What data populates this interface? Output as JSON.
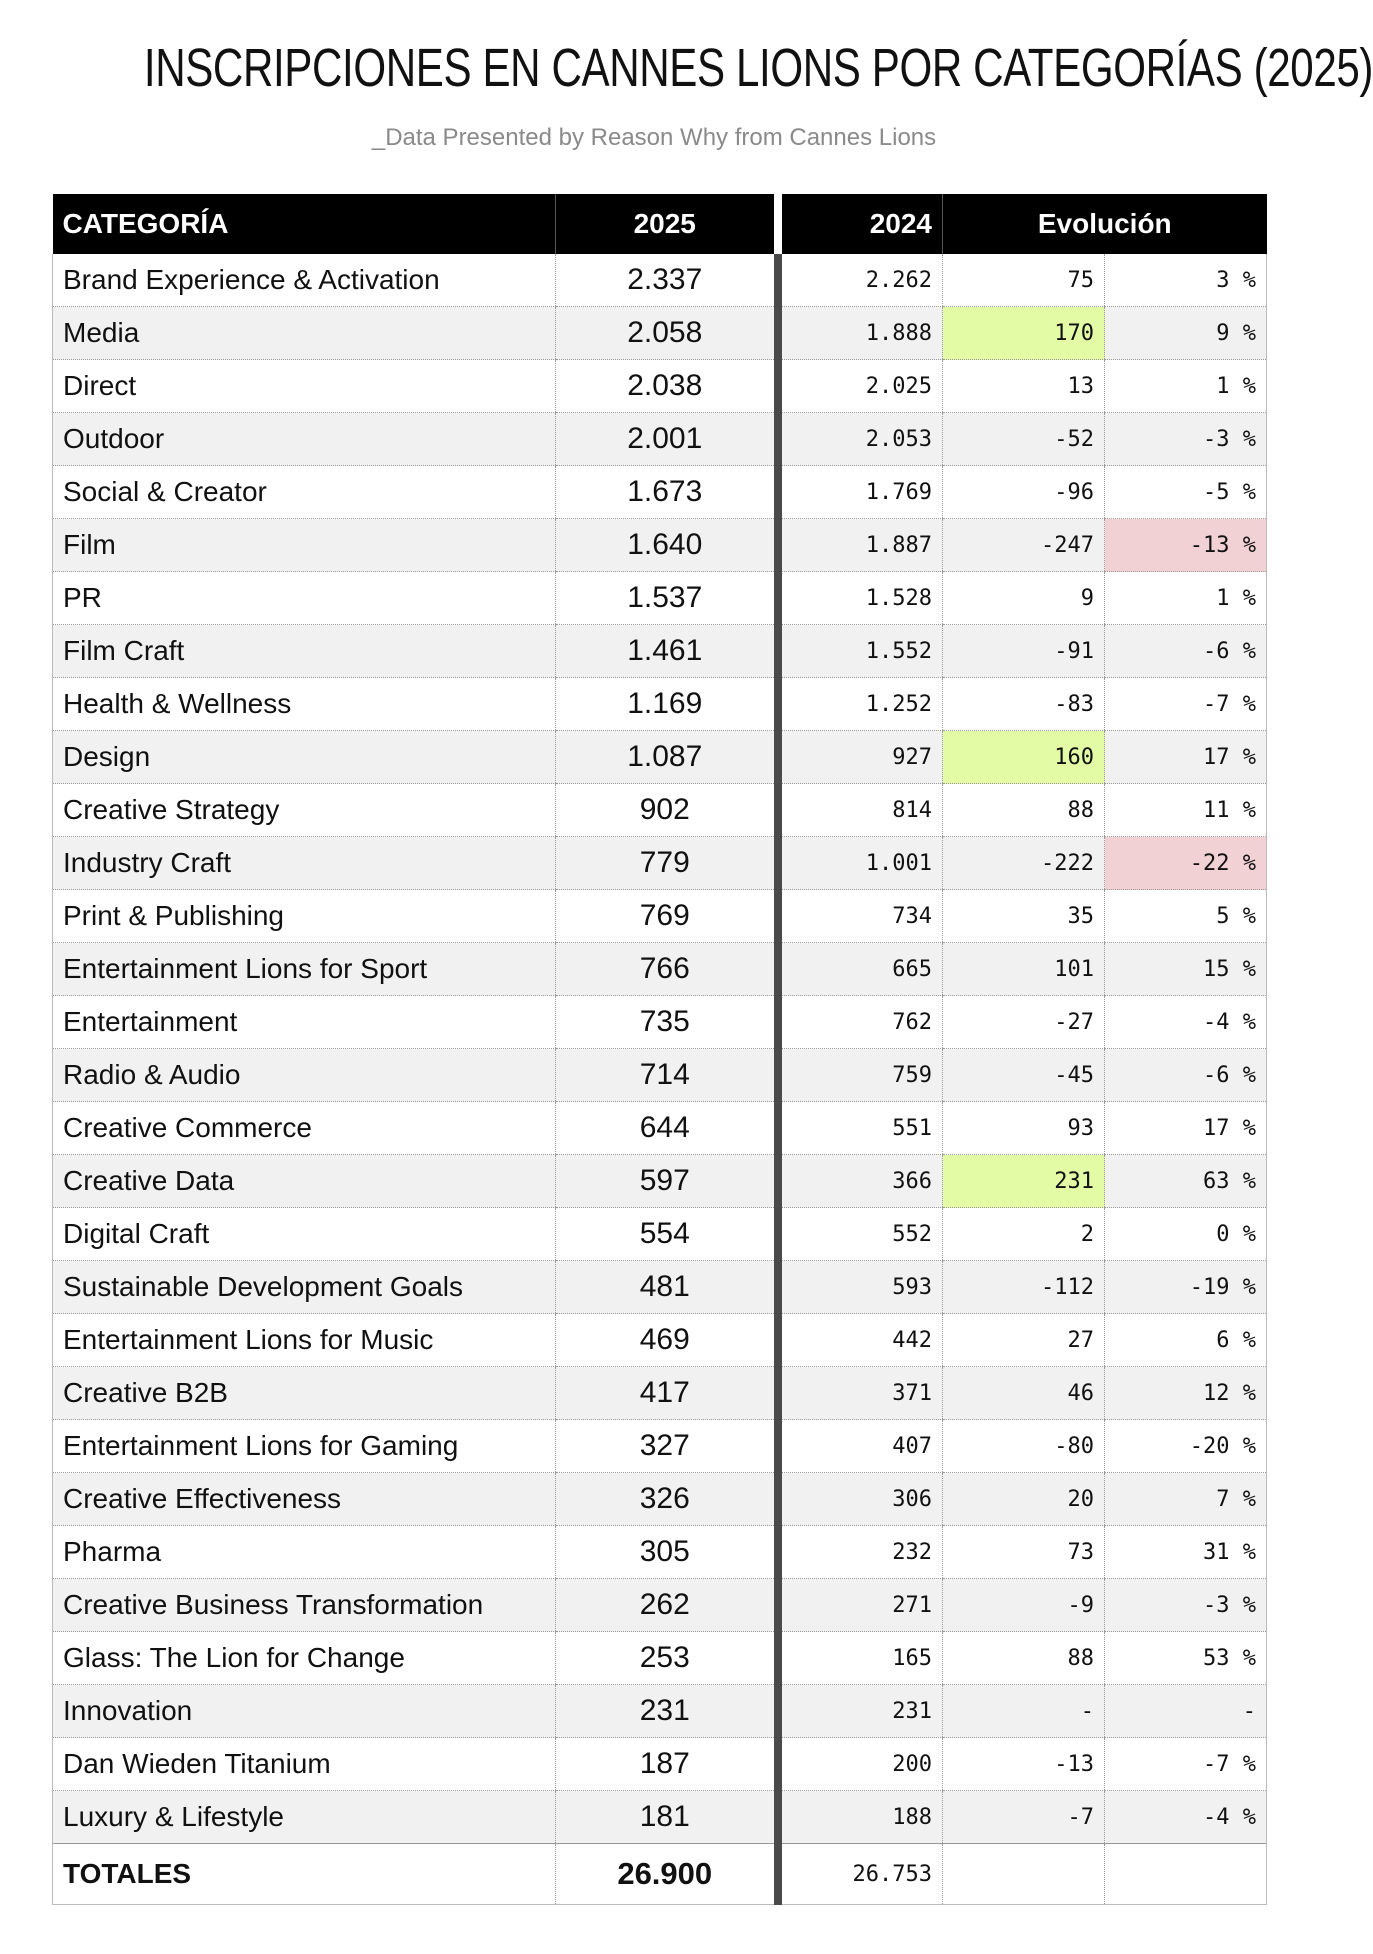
{
  "title": "INSCRIPCIONES EN CANNES LIONS POR CATEGORÍAS (2025)",
  "subtitle": "_Data Presented by Reason Why from Cannes Lions",
  "colors": {
    "header_bg": "#000000",
    "increase_highlight": "#e4fba6",
    "decrease_highlight": "#f1d1d4",
    "separator": "#4a4a4a"
  },
  "chart_data": {
    "type": "table",
    "columns": [
      "CATEGORÍA",
      "2025",
      "2024",
      "Evolución"
    ],
    "rows": [
      {
        "category": "Brand Experience & Activation",
        "y2025": "2.337",
        "y2024": "2.262",
        "diff": "75",
        "pct": "3 %",
        "highlight_diff": "",
        "highlight_pct": ""
      },
      {
        "category": "Media",
        "y2025": "2.058",
        "y2024": "1.888",
        "diff": "170",
        "pct": "9 %",
        "highlight_diff": "green",
        "highlight_pct": ""
      },
      {
        "category": "Direct",
        "y2025": "2.038",
        "y2024": "2.025",
        "diff": "13",
        "pct": "1 %",
        "highlight_diff": "",
        "highlight_pct": ""
      },
      {
        "category": "Outdoor",
        "y2025": "2.001",
        "y2024": "2.053",
        "diff": "-52",
        "pct": "-3 %",
        "highlight_diff": "",
        "highlight_pct": ""
      },
      {
        "category": "Social & Creator",
        "y2025": "1.673",
        "y2024": "1.769",
        "diff": "-96",
        "pct": "-5 %",
        "highlight_diff": "",
        "highlight_pct": ""
      },
      {
        "category": "Film",
        "y2025": "1.640",
        "y2024": "1.887",
        "diff": "-247",
        "pct": "-13 %",
        "highlight_diff": "",
        "highlight_pct": "red"
      },
      {
        "category": "PR",
        "y2025": "1.537",
        "y2024": "1.528",
        "diff": "9",
        "pct": "1 %",
        "highlight_diff": "",
        "highlight_pct": ""
      },
      {
        "category": "Film Craft",
        "y2025": "1.461",
        "y2024": "1.552",
        "diff": "-91",
        "pct": "-6 %",
        "highlight_diff": "",
        "highlight_pct": ""
      },
      {
        "category": "Health & Wellness",
        "y2025": "1.169",
        "y2024": "1.252",
        "diff": "-83",
        "pct": "-7 %",
        "highlight_diff": "",
        "highlight_pct": ""
      },
      {
        "category": "Design",
        "y2025": "1.087",
        "y2024": "927",
        "diff": "160",
        "pct": "17 %",
        "highlight_diff": "green",
        "highlight_pct": ""
      },
      {
        "category": "Creative Strategy",
        "y2025": "902",
        "y2024": "814",
        "diff": "88",
        "pct": "11 %",
        "highlight_diff": "",
        "highlight_pct": ""
      },
      {
        "category": "Industry Craft",
        "y2025": "779",
        "y2024": "1.001",
        "diff": "-222",
        "pct": "-22 %",
        "highlight_diff": "",
        "highlight_pct": "red"
      },
      {
        "category": "Print & Publishing",
        "y2025": "769",
        "y2024": "734",
        "diff": "35",
        "pct": "5 %",
        "highlight_diff": "",
        "highlight_pct": ""
      },
      {
        "category": "Entertainment Lions for Sport",
        "y2025": "766",
        "y2024": "665",
        "diff": "101",
        "pct": "15 %",
        "highlight_diff": "",
        "highlight_pct": ""
      },
      {
        "category": "Entertainment",
        "y2025": "735",
        "y2024": "762",
        "diff": "-27",
        "pct": "-4 %",
        "highlight_diff": "",
        "highlight_pct": ""
      },
      {
        "category": "Radio & Audio",
        "y2025": "714",
        "y2024": "759",
        "diff": "-45",
        "pct": "-6 %",
        "highlight_diff": "",
        "highlight_pct": ""
      },
      {
        "category": "Creative Commerce",
        "y2025": "644",
        "y2024": "551",
        "diff": "93",
        "pct": "17 %",
        "highlight_diff": "",
        "highlight_pct": ""
      },
      {
        "category": "Creative Data",
        "y2025": "597",
        "y2024": "366",
        "diff": "231",
        "pct": "63 %",
        "highlight_diff": "green",
        "highlight_pct": ""
      },
      {
        "category": "Digital Craft",
        "y2025": "554",
        "y2024": "552",
        "diff": "2",
        "pct": "0 %",
        "highlight_diff": "",
        "highlight_pct": ""
      },
      {
        "category": "Sustainable Development Goals",
        "y2025": "481",
        "y2024": "593",
        "diff": "-112",
        "pct": "-19 %",
        "highlight_diff": "",
        "highlight_pct": ""
      },
      {
        "category": "Entertainment Lions for Music",
        "y2025": "469",
        "y2024": "442",
        "diff": "27",
        "pct": "6 %",
        "highlight_diff": "",
        "highlight_pct": ""
      },
      {
        "category": "Creative B2B",
        "y2025": "417",
        "y2024": "371",
        "diff": "46",
        "pct": "12 %",
        "highlight_diff": "",
        "highlight_pct": ""
      },
      {
        "category": "Entertainment Lions for Gaming",
        "y2025": "327",
        "y2024": "407",
        "diff": "-80",
        "pct": "-20 %",
        "highlight_diff": "",
        "highlight_pct": ""
      },
      {
        "category": "Creative Effectiveness",
        "y2025": "326",
        "y2024": "306",
        "diff": "20",
        "pct": "7 %",
        "highlight_diff": "",
        "highlight_pct": ""
      },
      {
        "category": "Pharma",
        "y2025": "305",
        "y2024": "232",
        "diff": "73",
        "pct": "31 %",
        "highlight_diff": "",
        "highlight_pct": ""
      },
      {
        "category": "Creative Business Transformation",
        "y2025": "262",
        "y2024": "271",
        "diff": "-9",
        "pct": "-3 %",
        "highlight_diff": "",
        "highlight_pct": ""
      },
      {
        "category": "Glass: The Lion for Change",
        "y2025": "253",
        "y2024": "165",
        "diff": "88",
        "pct": "53 %",
        "highlight_diff": "",
        "highlight_pct": ""
      },
      {
        "category": "Innovation",
        "y2025": "231",
        "y2024": "231",
        "diff": "-",
        "pct": "-",
        "highlight_diff": "",
        "highlight_pct": ""
      },
      {
        "category": "Dan Wieden Titanium",
        "y2025": "187",
        "y2024": "200",
        "diff": "-13",
        "pct": "-7 %",
        "highlight_diff": "",
        "highlight_pct": ""
      },
      {
        "category": "Luxury & Lifestyle",
        "y2025": "181",
        "y2024": "188",
        "diff": "-7",
        "pct": "-4 %",
        "highlight_diff": "",
        "highlight_pct": ""
      }
    ],
    "totals": {
      "label": "TOTALES",
      "y2025": "26.900",
      "y2024": "26.753",
      "diff": "",
      "pct": ""
    }
  }
}
